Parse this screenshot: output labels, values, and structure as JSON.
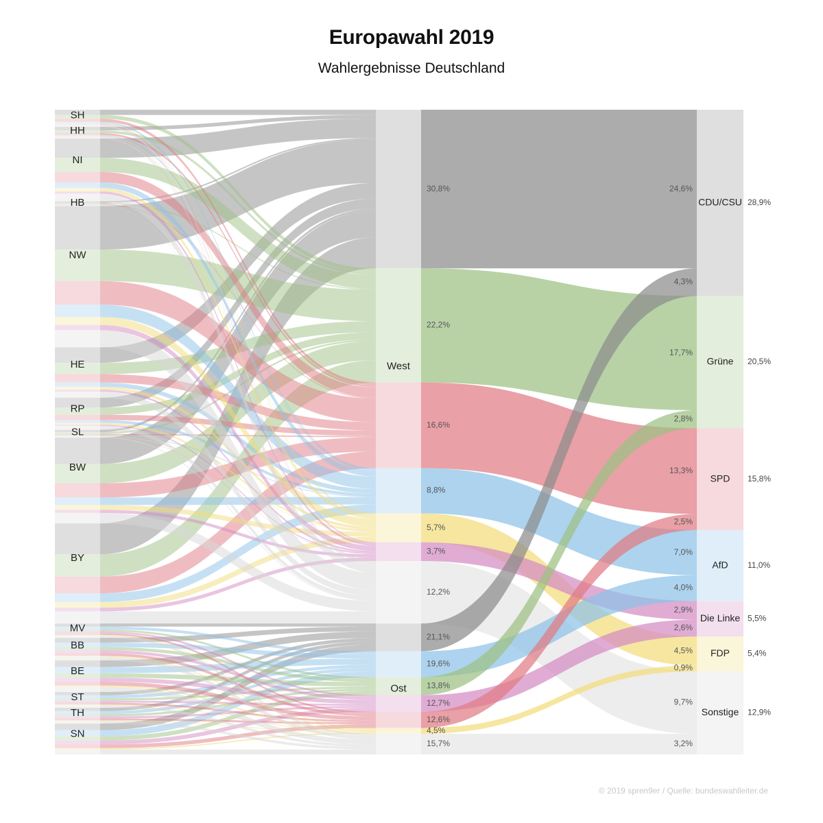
{
  "title": "Europawahl 2019",
  "subtitle": "Wahlergebnisse Deutschland",
  "credit": "© 2019 spren9er / Quelle: bundeswahlleiter.de",
  "colors": {
    "cdu": "#8c8c8c",
    "gruene": "#9dc183",
    "spd": "#e07c84",
    "afd": "#8ec2e8",
    "linke": "#d48cc4",
    "fdp": "#f2dc7c",
    "sonstige": "#d8d8d8",
    "node_gray": "#d6d6d6"
  },
  "chart_data": {
    "type": "sankey",
    "title": "Europawahl 2019",
    "subtitle": "Wahlergebnisse Deutschland",
    "states": [
      {
        "label": "SH",
        "region": "West",
        "weight": 2.6
      },
      {
        "label": "HH",
        "region": "West",
        "weight": 1.8
      },
      {
        "label": "NI",
        "region": "West",
        "weight": 9.6
      },
      {
        "label": "HB",
        "region": "West",
        "weight": 0.7
      },
      {
        "label": "NW",
        "region": "West",
        "weight": 21.6
      },
      {
        "label": "HE",
        "region": "West",
        "weight": 7.7
      },
      {
        "label": "RP",
        "region": "West",
        "weight": 4.9
      },
      {
        "label": "SL",
        "region": "West",
        "weight": 1.2
      },
      {
        "label": "BW",
        "region": "West",
        "weight": 13.1
      },
      {
        "label": "BY",
        "region": "West",
        "weight": 15.3
      },
      {
        "label": "MV",
        "region": "Ost",
        "weight": 1.9
      },
      {
        "label": "BB",
        "region": "Ost",
        "weight": 3.0
      },
      {
        "label": "BE",
        "region": "Ost",
        "weight": 4.2
      },
      {
        "label": "ST",
        "region": "Ost",
        "weight": 2.1
      },
      {
        "label": "TH",
        "region": "Ost",
        "weight": 2.1
      },
      {
        "label": "SN",
        "region": "Ost",
        "weight": 4.1
      }
    ],
    "regions": [
      {
        "label": "West",
        "parties": [
          {
            "party": "CDU/CSU",
            "share": "30,8%",
            "value": 30.8,
            "to_total": "24,6%"
          },
          {
            "party": "Grüne",
            "share": "22,2%",
            "value": 22.2,
            "to_total": "17,7%"
          },
          {
            "party": "SPD",
            "share": "16,6%",
            "value": 16.6,
            "to_total": "13,3%"
          },
          {
            "party": "AfD",
            "share": "8,8%",
            "value": 8.8,
            "to_total": "7,0%"
          },
          {
            "party": "FDP",
            "share": "5,7%",
            "value": 5.7,
            "to_total": "4,5%"
          },
          {
            "party": "Die Linke",
            "share": "3,7%",
            "value": 3.7,
            "to_total": "2,9%"
          },
          {
            "party": "Sonstige",
            "share": "12,2%",
            "value": 12.2,
            "to_total": "9,7%"
          }
        ]
      },
      {
        "label": "Ost",
        "parties": [
          {
            "party": "CDU/CSU",
            "share": "21,1%",
            "value": 21.1,
            "to_total": "4,3%"
          },
          {
            "party": "AfD",
            "share": "19,6%",
            "value": 19.6,
            "to_total": "4,0%"
          },
          {
            "party": "Grüne",
            "share": "13,8%",
            "value": 13.8,
            "to_total": "2,8%"
          },
          {
            "party": "Die Linke",
            "share": "12,7%",
            "value": 12.7,
            "to_total": "2,6%"
          },
          {
            "party": "SPD",
            "share": "12,6%",
            "value": 12.6,
            "to_total": "2,5%"
          },
          {
            "party": "FDP",
            "share": "4,5%",
            "value": 4.5,
            "to_total": "0,9%"
          },
          {
            "party": "Sonstige",
            "share": "15,7%",
            "value": 15.7,
            "to_total": "3,2%"
          }
        ]
      }
    ],
    "totals": [
      {
        "party": "CDU/CSU",
        "key": "cdu",
        "total": "28,9%",
        "value": 28.9
      },
      {
        "party": "Grüne",
        "key": "gruene",
        "total": "20,5%",
        "value": 20.5
      },
      {
        "party": "SPD",
        "key": "spd",
        "total": "15,8%",
        "value": 15.8
      },
      {
        "party": "AfD",
        "key": "afd",
        "total": "11,0%",
        "value": 11.0
      },
      {
        "party": "Die Linke",
        "key": "linke",
        "total": "5,5%",
        "value": 5.5
      },
      {
        "party": "FDP",
        "key": "fdp",
        "total": "5,4%",
        "value": 5.4
      },
      {
        "party": "Sonstige",
        "key": "sonstige",
        "total": "12,9%",
        "value": 12.9
      }
    ]
  }
}
